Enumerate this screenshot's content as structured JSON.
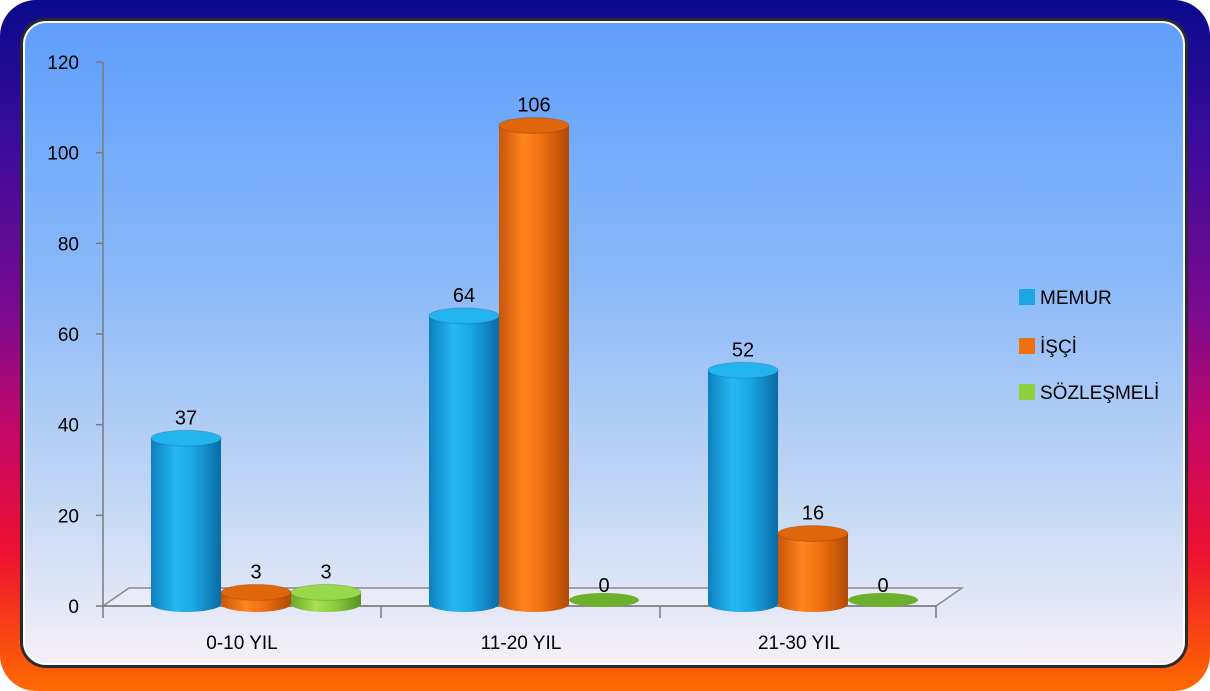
{
  "chart_data": {
    "type": "bar",
    "title": "",
    "xlabel": "",
    "ylabel": "",
    "categories": [
      "0-10 YIL",
      "11-20 YIL",
      "21-30 YIL"
    ],
    "series": [
      {
        "name": "MEMUR",
        "values": [
          37,
          64,
          52
        ],
        "color": "#1aa7e6"
      },
      {
        "name": "İŞÇİ",
        "values": [
          3,
          106,
          16
        ],
        "color": "#f07010"
      },
      {
        "name": "SÖZLEŞMELİ",
        "values": [
          3,
          0,
          0
        ],
        "color": "#8cd040"
      }
    ],
    "data_labels": [
      [
        "37",
        "64",
        "52"
      ],
      [
        "3",
        "106",
        "16"
      ],
      [
        "3",
        "0",
        "0"
      ]
    ],
    "ylim": [
      0,
      120
    ],
    "yticks": [
      0,
      20,
      40,
      60,
      80,
      100,
      120
    ],
    "legend_position": "right",
    "grid": false,
    "style": "3d-cylinder"
  }
}
